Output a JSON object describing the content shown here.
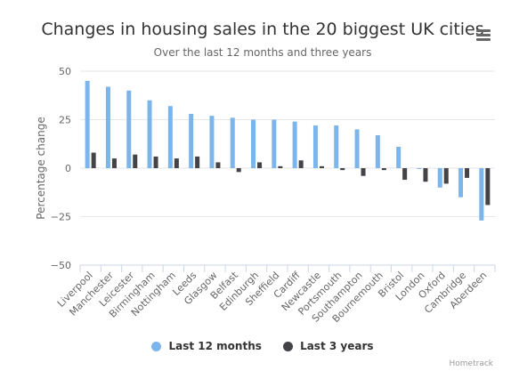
{
  "chart_data": {
    "type": "bar",
    "title": "Changes in housing sales in the 20 biggest UK cities",
    "subtitle": "Over the last 12 months and three years",
    "ylabel": "Percentage change",
    "ylim": [
      -50,
      50
    ],
    "yticks": [
      50,
      25,
      0,
      -25,
      -50
    ],
    "grid": true,
    "legend_position": "bottom",
    "categories": [
      "Liverpool",
      "Manchester",
      "Leicester",
      "Birmingham",
      "Nottingham",
      "Leeds",
      "Glasgow",
      "Belfast",
      "Edinburgh",
      "Sheffield",
      "Cardiff",
      "Newcastle",
      "Portsmouth",
      "Southampton",
      "Bournemouth",
      "Bristol",
      "London",
      "Oxford",
      "Cambridge",
      "Aberdeen"
    ],
    "series": [
      {
        "name": "Last 12 months",
        "color": "#7cb5ec",
        "values": [
          45,
          42,
          40,
          35,
          32,
          28,
          27,
          26,
          25,
          25,
          24,
          22,
          22,
          20,
          17,
          11,
          0,
          -10,
          -15,
          -27
        ]
      },
      {
        "name": "Last 3 years",
        "color": "#434348",
        "values": [
          8,
          5,
          7,
          6,
          5,
          6,
          3,
          -2,
          3,
          1,
          4,
          1,
          -1,
          -4,
          -1,
          -6,
          -7,
          -8,
          -5,
          -19
        ]
      }
    ]
  },
  "menu_icon": "hamburger-menu-icon",
  "credits": "Hometrack"
}
